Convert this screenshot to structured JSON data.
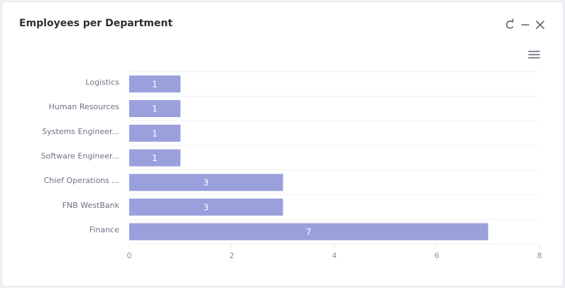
{
  "chart_data": {
    "type": "bar",
    "orientation": "horizontal",
    "title": "Employees per Department",
    "categories": [
      "Logistics",
      "Human Resources",
      "Systems Engineer...",
      "Software Engineer...",
      "Chief Operations ...",
      "FNB WestBank",
      "Finance"
    ],
    "values": [
      1,
      1,
      1,
      1,
      3,
      3,
      7
    ],
    "color": "#9aa0dc",
    "xlim": [
      0,
      8
    ],
    "xticks": [
      0,
      2,
      4,
      6,
      8
    ],
    "grid": true
  }
}
